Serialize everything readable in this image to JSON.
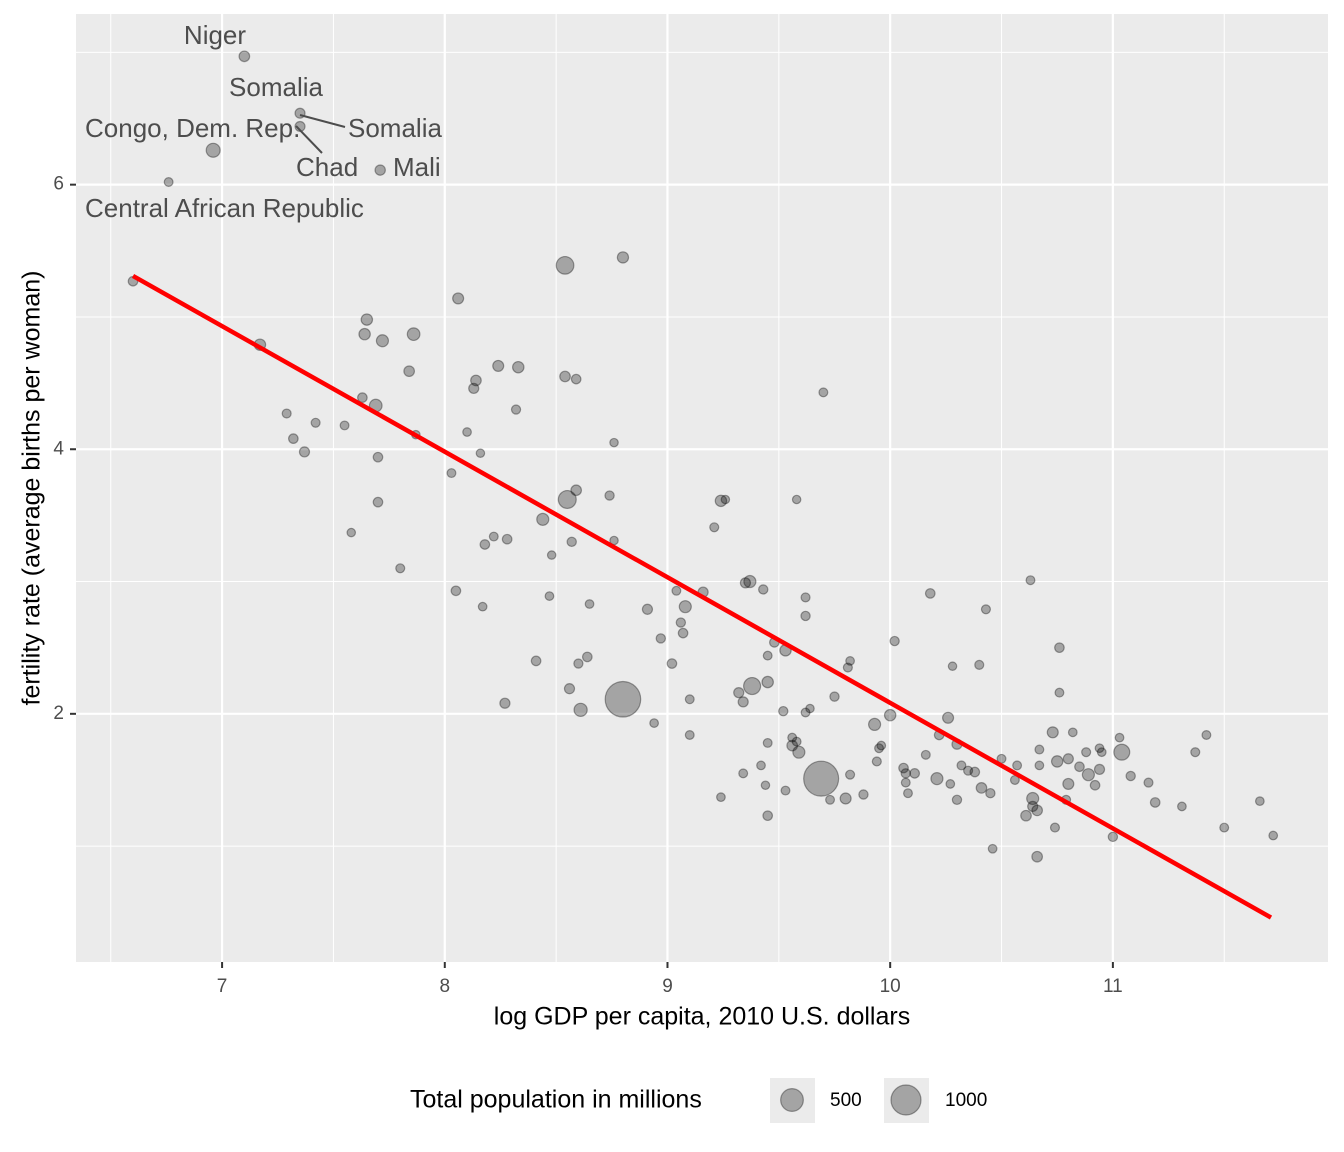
{
  "chart_data": {
    "type": "scatter",
    "x_label": "log GDP per capita, 2010 U.S. dollars",
    "y_label": "fertility rate (average births per woman)",
    "xlim": [
      6.344,
      11.966
    ],
    "ylim": [
      0.124,
      7.29
    ],
    "xticks": [
      7,
      8,
      9,
      10,
      11
    ],
    "yticks": [
      2,
      4,
      6
    ],
    "minor_xticks": [
      6.5,
      7.5,
      8.5,
      9.5,
      10.5,
      11.5
    ],
    "minor_yticks": [
      1,
      3,
      5,
      7
    ],
    "grid": true,
    "point_color": "#000000",
    "series": [
      {
        "x": [
          7.1,
          7.35,
          6.96,
          7.35,
          7.71,
          6.76,
          6.6,
          8.54,
          8.8,
          8.06,
          7.65,
          7.64,
          7.72,
          7.86,
          7.17,
          7.84,
          8.24,
          8.33,
          8.54,
          8.59,
          8.14,
          8.13,
          7.63,
          7.69,
          8.32,
          9.7,
          7.29,
          7.42,
          7.55,
          7.32,
          7.37,
          7.87,
          8.1,
          8.16,
          7.7,
          8.03,
          8.76,
          7.7,
          8.59,
          8.55,
          8.74,
          9.24,
          9.26,
          9.58,
          8.44,
          9.21,
          7.58,
          8.28,
          8.22,
          8.18,
          8.57,
          8.76,
          8.48,
          7.8,
          8.05,
          8.47,
          8.17,
          8.65,
          9.04,
          9.16,
          9.37,
          9.35,
          9.43,
          9.62,
          9.08,
          8.91,
          9.62,
          9.06,
          9.07,
          8.97,
          10.18,
          10.63,
          10.43,
          10.02,
          9.48,
          9.53,
          9.45,
          10.76,
          8.41,
          8.64,
          8.6,
          9.02,
          9.82,
          9.81,
          10.4,
          10.28,
          8.56,
          9.38,
          9.45,
          8.8,
          8.27,
          8.61,
          9.1,
          9.32,
          9.34,
          9.75,
          10.76,
          9.52,
          9.64,
          9.62,
          10.0,
          10.26,
          9.93,
          8.94,
          9.1,
          10.73,
          10.82,
          11.03,
          11.42,
          10.22,
          10.3,
          9.56,
          9.58,
          9.56,
          9.59,
          9.45,
          9.95,
          9.96,
          10.67,
          10.88,
          10.94,
          10.95,
          11.04,
          11.37,
          10.16,
          10.5,
          10.57,
          10.32,
          10.75,
          10.8,
          10.85,
          10.67,
          9.94,
          9.42,
          10.06,
          10.07,
          10.11,
          10.35,
          10.38,
          10.94,
          10.89,
          11.08,
          10.21,
          9.69,
          9.34,
          9.82,
          10.56,
          11.16,
          10.07,
          10.27,
          10.8,
          10.92,
          9.44,
          10.41,
          9.53,
          10.08,
          10.45,
          9.88,
          9.8,
          9.73,
          10.64,
          10.79,
          9.24,
          10.3,
          11.19,
          11.66,
          11.31,
          10.64,
          10.66,
          10.61,
          9.45,
          10.74,
          11.5,
          11.0,
          11.72,
          10.46,
          10.66
        ],
        "y": [
          6.97,
          6.54,
          6.26,
          6.44,
          6.11,
          6.02,
          5.27,
          5.39,
          5.45,
          5.14,
          4.98,
          4.87,
          4.82,
          4.87,
          4.79,
          4.59,
          4.63,
          4.62,
          4.55,
          4.53,
          4.52,
          4.46,
          4.39,
          4.33,
          4.3,
          4.43,
          4.27,
          4.2,
          4.18,
          4.08,
          3.98,
          4.11,
          4.13,
          3.97,
          3.94,
          3.82,
          4.05,
          3.6,
          3.69,
          3.62,
          3.65,
          3.61,
          3.62,
          3.62,
          3.47,
          3.41,
          3.37,
          3.32,
          3.34,
          3.28,
          3.3,
          3.31,
          3.2,
          3.1,
          2.93,
          2.89,
          2.81,
          2.83,
          2.93,
          2.92,
          3.0,
          2.99,
          2.94,
          2.88,
          2.81,
          2.79,
          2.74,
          2.69,
          2.61,
          2.57,
          2.91,
          3.01,
          2.79,
          2.55,
          2.54,
          2.48,
          2.44,
          2.5,
          2.4,
          2.43,
          2.38,
          2.38,
          2.4,
          2.35,
          2.37,
          2.36,
          2.19,
          2.21,
          2.24,
          2.11,
          2.08,
          2.03,
          2.11,
          2.16,
          2.09,
          2.13,
          2.16,
          2.02,
          2.04,
          2.01,
          1.99,
          1.97,
          1.92,
          1.93,
          1.84,
          1.86,
          1.86,
          1.82,
          1.84,
          1.84,
          1.77,
          1.82,
          1.79,
          1.76,
          1.71,
          1.78,
          1.74,
          1.76,
          1.73,
          1.71,
          1.74,
          1.71,
          1.71,
          1.71,
          1.69,
          1.66,
          1.61,
          1.61,
          1.64,
          1.66,
          1.6,
          1.61,
          1.64,
          1.61,
          1.59,
          1.55,
          1.55,
          1.57,
          1.56,
          1.58,
          1.54,
          1.53,
          1.51,
          1.51,
          1.55,
          1.54,
          1.5,
          1.48,
          1.48,
          1.47,
          1.47,
          1.46,
          1.46,
          1.44,
          1.42,
          1.4,
          1.4,
          1.39,
          1.36,
          1.35,
          1.36,
          1.35,
          1.37,
          1.35,
          1.33,
          1.34,
          1.3,
          1.3,
          1.27,
          1.23,
          1.23,
          1.14,
          1.14,
          1.07,
          1.08,
          0.98,
          0.92
        ],
        "size": [
          20,
          14,
          77,
          14,
          17,
          5,
          10,
          180,
          28,
          25,
          30,
          30,
          40,
          50,
          30,
          20,
          25,
          30,
          20,
          10,
          20,
          15,
          10,
          50,
          7,
          5,
          6,
          6,
          5,
          10,
          15,
          3,
          4,
          3,
          10,
          5,
          3,
          10,
          20,
          190,
          8,
          30,
          3,
          3,
          40,
          6,
          3,
          10,
          5,
          10,
          8,
          3,
          3,
          6,
          10,
          4,
          4,
          4,
          5,
          15,
          40,
          15,
          8,
          6,
          40,
          15,
          8,
          8,
          10,
          8,
          10,
          5,
          6,
          8,
          10,
          30,
          5,
          10,
          10,
          10,
          7,
          10,
          4,
          6,
          6,
          3,
          15,
          160,
          30,
          1300,
          15,
          60,
          5,
          15,
          15,
          8,
          5,
          8,
          3,
          5,
          30,
          25,
          40,
          4,
          5,
          25,
          4,
          4,
          5,
          10,
          15,
          5,
          5,
          20,
          40,
          5,
          5,
          4,
          5,
          6,
          4,
          4,
          127,
          6,
          5,
          5,
          5,
          5,
          30,
          15,
          10,
          4,
          6,
          4,
          10,
          8,
          10,
          6,
          10,
          15,
          40,
          8,
          40,
          1250,
          5,
          6,
          5,
          6,
          5,
          4,
          25,
          10,
          3,
          20,
          5,
          5,
          8,
          8,
          25,
          5,
          40,
          6,
          4,
          8,
          10,
          4,
          4,
          15,
          20,
          20,
          10,
          6,
          5,
          8,
          4,
          4,
          20
        ]
      }
    ],
    "trend": {
      "x": [
        6.6,
        11.71
      ],
      "y": [
        5.31,
        0.46
      ],
      "color": "#ff0000"
    },
    "annotations": [
      "Niger",
      "Somalia",
      "Congo, Dem. Rep.",
      "Somalia",
      "Chad",
      "Mali",
      "Central African Republic"
    ],
    "size_legend": {
      "title": "Total population in millions",
      "values": [
        500,
        1000
      ]
    }
  }
}
